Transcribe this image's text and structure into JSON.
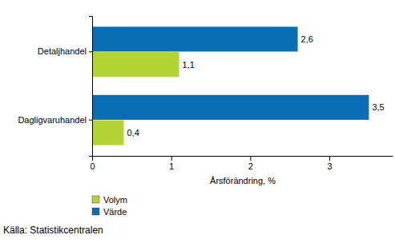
{
  "chart_data": {
    "type": "bar",
    "orientation": "horizontal",
    "data_labels": true,
    "categories": [
      "Detaljhandel",
      "Dagligvaruhandel"
    ],
    "series": [
      {
        "name": "Volym",
        "color": "#b3d234",
        "values": [
          1.1,
          0.4
        ],
        "value_labels": [
          "1,1",
          "0,4"
        ]
      },
      {
        "name": "Värde",
        "color": "#0a6eb4",
        "values": [
          2.6,
          3.5
        ],
        "value_labels": [
          "2,6",
          "3,5"
        ]
      }
    ],
    "xlabel": "Årsförändring, %",
    "xlim": [
      0,
      3.8
    ],
    "xticks": [
      0,
      1,
      2,
      3
    ],
    "source": "Källa: Statistikcentralen"
  }
}
